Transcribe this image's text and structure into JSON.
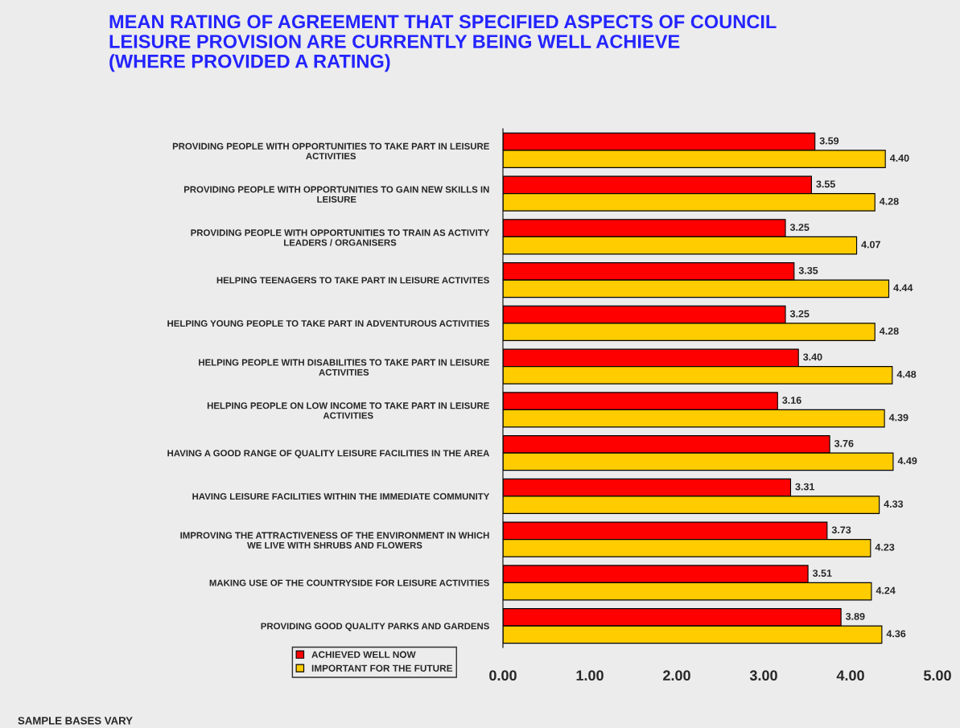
{
  "chart_data": {
    "type": "bar",
    "orientation": "horizontal",
    "title": "MEAN RATING OF AGREEMENT THAT SPECIFIED ASPECTS OF COUNCIL\nLEISURE PROVISION ARE CURRENTLY BEING WELL ACHIEVE\n(WHERE PROVIDED A RATING)",
    "categories": [
      "PROVIDING PEOPLE WITH OPPORTUNITIES TO TAKE PART IN LEISURE\nACTIVITIES",
      "PROVIDING PEOPLE WITH OPPORTUNITIES TO GAIN NEW SKILLS IN\nLEISURE",
      "PROVIDING PEOPLE WITH OPPORTUNITIES TO TRAIN AS ACTIVITY\nLEADERS / ORGANISERS",
      "HELPING TEENAGERS TO TAKE PART IN LEISURE ACTIVITES",
      "HELPING YOUNG PEOPLE TO TAKE PART IN ADVENTUROUS ACTIVITIES",
      "HELPING PEOPLE WITH DISABILITIES TO TAKE PART IN LEISURE\nACTIVITIES",
      "HELPING PEOPLE ON LOW INCOME TO TAKE PART IN LEISURE\nACTIVITIES",
      "HAVING A GOOD RANGE OF QUALITY LEISURE FACILITIES IN THE AREA",
      "HAVING LEISURE FACILITIES WITHIN THE IMMEDIATE COMMUNITY",
      "IMPROVING THE ATTRACTIVENESS OF THE ENVIRONMENT IN WHICH\nWE LIVE WITH SHRUBS AND FLOWERS",
      "MAKING USE OF THE COUNTRYSIDE FOR LEISURE ACTIVITIES",
      "PROVIDING GOOD QUALITY PARKS AND GARDENS"
    ],
    "series": [
      {
        "name": "ACHIEVED WELL NOW",
        "color": "#ff0000",
        "values": [
          3.59,
          3.55,
          3.25,
          3.35,
          3.25,
          3.4,
          3.16,
          3.76,
          3.31,
          3.73,
          3.51,
          3.89
        ],
        "value_labels": [
          "3.59",
          "3.55",
          "3.25",
          "3.35",
          "3.25",
          "3.40",
          "3.16",
          "3.76",
          "3.31",
          "3.73",
          "3.51",
          "3.89"
        ]
      },
      {
        "name": "IMPORTANT FOR THE FUTURE",
        "color": "#ffcc00",
        "values": [
          4.4,
          4.28,
          4.07,
          4.44,
          4.28,
          4.48,
          4.39,
          4.49,
          4.33,
          4.23,
          4.24,
          4.36
        ],
        "value_labels": [
          "4.40",
          "4.28",
          "4.07",
          "4.44",
          "4.28",
          "4.48",
          "4.39",
          "4.49",
          "4.33",
          "4.23",
          "4.24",
          "4.36"
        ]
      }
    ],
    "xlim": [
      0,
      5
    ],
    "xticks": [
      {
        "value": 0,
        "label": "0.00"
      },
      {
        "value": 1,
        "label": "1.00"
      },
      {
        "value": 2,
        "label": "2.00"
      },
      {
        "value": 3,
        "label": "3.00"
      },
      {
        "value": 4,
        "label": "4.00"
      },
      {
        "value": 5,
        "label": "5.00"
      }
    ],
    "grid": false,
    "legend": "bottom left",
    "annotations": [
      "SAMPLE BASES VARY"
    ]
  }
}
